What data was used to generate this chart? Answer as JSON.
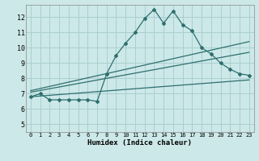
{
  "xlabel": "Humidex (Indice chaleur)",
  "bg_color": "#cce8e8",
  "grid_color": "#aacfcf",
  "line_color": "#2e6e6e",
  "xlim": [
    -0.5,
    23.5
  ],
  "ylim": [
    4.5,
    12.8
  ],
  "xticks": [
    0,
    1,
    2,
    3,
    4,
    5,
    6,
    7,
    8,
    9,
    10,
    11,
    12,
    13,
    14,
    15,
    16,
    17,
    18,
    19,
    20,
    21,
    22,
    23
  ],
  "yticks": [
    5,
    6,
    7,
    8,
    9,
    10,
    11,
    12
  ],
  "main_line_x": [
    0,
    1,
    2,
    3,
    4,
    5,
    6,
    7,
    8,
    9,
    10,
    11,
    12,
    13,
    14,
    15,
    16,
    17,
    18,
    19,
    20,
    21,
    22,
    23
  ],
  "main_line_y": [
    6.8,
    7.0,
    6.6,
    6.6,
    6.6,
    6.6,
    6.6,
    6.5,
    8.3,
    9.5,
    10.3,
    11.0,
    11.9,
    12.5,
    11.6,
    12.4,
    11.5,
    11.1,
    10.0,
    9.6,
    9.0,
    8.6,
    8.3,
    8.2
  ],
  "trend1_x": [
    0,
    23
  ],
  "trend1_y": [
    6.8,
    7.9
  ],
  "trend2_x": [
    0,
    23
  ],
  "trend2_y": [
    7.1,
    9.7
  ],
  "trend3_x": [
    0,
    23
  ],
  "trend3_y": [
    7.2,
    10.4
  ]
}
